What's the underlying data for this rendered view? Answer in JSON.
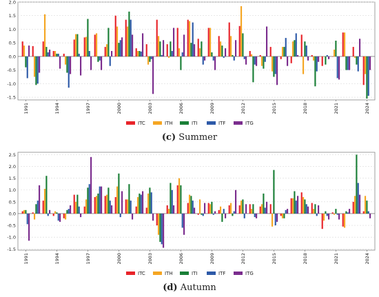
{
  "chart_data": [
    {
      "type": "bar",
      "x": [
        1991,
        1992,
        1993,
        1994,
        1995,
        1996,
        1997,
        1998,
        1999,
        2000,
        2001,
        2002,
        2003,
        2004,
        2005,
        2006,
        2007,
        2008,
        2009,
        2010,
        2011,
        2012,
        2013,
        2014,
        2015,
        2016,
        2017,
        2018,
        2019,
        2020,
        2021,
        2022,
        2023,
        2024
      ],
      "xticks": [
        "1991",
        "1994",
        "1997",
        "2000",
        "2003",
        "2006",
        "2009",
        "2012",
        "2015",
        "2018",
        "2021",
        "2024"
      ],
      "ylim": [
        -1.6,
        2.0
      ],
      "yticks": [
        "-1.5",
        "-1.0",
        "-0.5",
        "0.0",
        "0.5",
        "1.0",
        "1.5",
        "2.0"
      ],
      "series": [
        {
          "name": "ITC",
          "color": "#e8242a",
          "values": [
            0.55,
            0.38,
            0.55,
            0.2,
            0.1,
            0.62,
            0.7,
            0.8,
            0.35,
            1.5,
            1.35,
            0.3,
            0.45,
            1.35,
            0.45,
            1.05,
            1.35,
            0.65,
            1.05,
            0.75,
            1.25,
            1.12,
            0.2,
            0.05,
            0.35,
            -0.1,
            -0.25,
            0.8,
            0.05,
            -0.35,
            0.0,
            0.88,
            0.35,
            -1.05
          ]
        },
        {
          "name": "ITH",
          "color": "#f5a623",
          "values": [
            0.4,
            -0.75,
            1.55,
            0.2,
            -0.3,
            0.82,
            0.72,
            0.85,
            0.45,
            1.1,
            1.1,
            0.2,
            -0.3,
            0.75,
            -0.05,
            0.3,
            1.3,
            0.3,
            1.05,
            0.55,
            0.75,
            1.85,
            0.08,
            -0.35,
            -0.55,
            0.35,
            0.55,
            -0.65,
            -0.15,
            0.0,
            0.25,
            0.88,
            -0.05,
            -0.65
          ]
        },
        {
          "name": "ITI",
          "color": "#1a7f37",
          "values": [
            -0.4,
            -1.05,
            0.35,
            0.1,
            -0.6,
            0.82,
            1.38,
            -0.2,
            1.05,
            0.5,
            1.65,
            0.2,
            -0.2,
            0.55,
            0.55,
            -0.5,
            0.5,
            0.55,
            0.15,
            0.4,
            0.05,
            0.85,
            -0.95,
            -0.45,
            -0.75,
            0.35,
            0.6,
            0.55,
            -1.1,
            -0.3,
            0.58,
            -0.5,
            -0.3,
            -1.55
          ]
        },
        {
          "name": "ITF",
          "color": "#2e5aa8",
          "values": [
            -0.8,
            -1.0,
            0.15,
            0.1,
            -1.15,
            0.1,
            0.2,
            -0.15,
            -0.35,
            0.6,
            1.35,
            0.18,
            -0.1,
            0.05,
            0.2,
            0.15,
            1.25,
            -0.3,
            -0.15,
            -0.05,
            -0.15,
            -0.1,
            -0.3,
            -0.2,
            -0.65,
            0.68,
            0.85,
            0.4,
            -0.55,
            0.05,
            -0.8,
            -0.5,
            -0.55,
            -1.45
          ]
        },
        {
          "name": "ITG",
          "color": "#7b2d8e",
          "values": [
            0.4,
            -0.6,
            0.25,
            -0.45,
            -0.65,
            -0.7,
            -0.5,
            -0.5,
            0.2,
            0.7,
            0.8,
            0.85,
            -1.38,
            0.6,
            1.05,
            0.8,
            0.45,
            -0.15,
            -0.5,
            0.3,
            0.6,
            -0.3,
            -0.35,
            1.1,
            -1.05,
            -0.35,
            0.05,
            -0.15,
            -0.2,
            -0.1,
            -0.85,
            -0.5,
            0.65,
            -0.5
          ]
        }
      ]
    },
    {
      "type": "bar",
      "x": [
        1991,
        1992,
        1993,
        1994,
        1995,
        1996,
        1997,
        1998,
        1999,
        2000,
        2001,
        2002,
        2003,
        2004,
        2005,
        2006,
        2007,
        2008,
        2009,
        2010,
        2011,
        2012,
        2013,
        2014,
        2015,
        2016,
        2017,
        2018,
        2019,
        2020,
        2021,
        2022,
        2023,
        2024
      ],
      "xticks": [
        "1991",
        "1994",
        "1997",
        "2000",
        "2003",
        "2006",
        "2009",
        "2012",
        "2015",
        "2018",
        "2021",
        "2024"
      ],
      "ylim": [
        -1.55,
        2.6
      ],
      "yticks": [
        "-1.5",
        "-1.0",
        "-0.5",
        "0.0",
        "0.5",
        "1.0",
        "1.5",
        "2.0",
        "2.5"
      ],
      "series": [
        {
          "name": "ITC",
          "color": "#e8242a",
          "values": [
            0.1,
            0.05,
            0.55,
            -0.1,
            -0.2,
            0.8,
            0.3,
            0.7,
            0.75,
            0.7,
            0.6,
            0.3,
            0.25,
            -0.5,
            0.35,
            1.2,
            0.45,
            -0.05,
            0.45,
            0.15,
            0.35,
            0.35,
            0.4,
            0.3,
            0.4,
            -0.1,
            0.65,
            0.9,
            0.45,
            -0.65,
            0.05,
            -0.55,
            0.5,
            0.1
          ]
        },
        {
          "name": "ITH",
          "color": "#f5a623",
          "values": [
            0.15,
            -0.25,
            1.05,
            0.1,
            -0.25,
            0.5,
            0.6,
            0.75,
            0.8,
            1.15,
            0.6,
            0.7,
            0.85,
            -0.9,
            0.2,
            1.5,
            0.8,
            0.6,
            0.4,
            0.3,
            0.45,
            0.55,
            0.2,
            0.4,
            -0.55,
            -0.2,
            0.65,
            0.7,
            0.2,
            -0.3,
            -0.05,
            -0.6,
            0.75,
            0.75
          ]
        },
        {
          "name": "ITI",
          "color": "#1a7f37",
          "values": [
            0.15,
            0.4,
            1.6,
            0.05,
            0.15,
            0.8,
            1.1,
            0.85,
            1.1,
            1.7,
            1.25,
            0.85,
            1.1,
            -1.2,
            1.3,
            1.2,
            0.75,
            -0.05,
            0.5,
            -0.35,
            -0.1,
            0.6,
            0.4,
            0.85,
            1.85,
            -0.2,
            0.95,
            0.6,
            0.4,
            0.1,
            0.2,
            0.1,
            2.5,
            0.55
          ]
        },
        {
          "name": "ITF",
          "color": "#2e5aa8",
          "values": [
            -0.45,
            0.55,
            -0.1,
            -0.3,
            0.2,
            0.3,
            1.25,
            1.15,
            0.55,
            -0.15,
            0.55,
            0.8,
            0.9,
            -1.3,
            1.0,
            -0.6,
            0.55,
            -0.1,
            -0.05,
            0.2,
            0.1,
            -0.2,
            -0.15,
            0.25,
            -0.5,
            0.15,
            0.55,
            0.4,
            -0.1,
            -0.1,
            -0.05,
            0.05,
            1.3,
            0.1
          ]
        },
        {
          "name": "ITG",
          "color": "#7b2d8e",
          "values": [
            -1.15,
            1.2,
            0.15,
            -0.35,
            0.35,
            -0.15,
            2.4,
            1.15,
            0.35,
            0.95,
            -0.25,
            0.95,
            -0.3,
            -1.45,
            0.35,
            -0.9,
            0.25,
            0.45,
            0.1,
            -0.2,
            1.0,
            0.4,
            -0.2,
            0.5,
            -0.35,
            0.2,
            0.75,
            0.3,
            0.35,
            -0.25,
            -0.25,
            0.2,
            0.8,
            -0.2
          ]
        }
      ]
    }
  ],
  "legend": [
    {
      "label": "ITC",
      "color": "#e8242a"
    },
    {
      "label": "ITH",
      "color": "#f5a623"
    },
    {
      "label": "ITI",
      "color": "#1a7f37"
    },
    {
      "label": "ITF",
      "color": "#2e5aa8"
    },
    {
      "label": "ITG",
      "color": "#7b2d8e"
    }
  ],
  "captions": [
    {
      "letter": "(c)",
      "text": "Summer"
    },
    {
      "letter": "(d)",
      "text": "Autumn"
    }
  ]
}
